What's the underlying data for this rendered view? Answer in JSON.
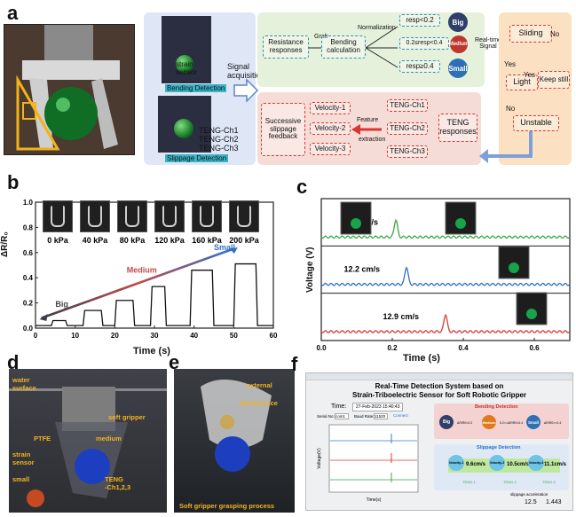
{
  "panels": {
    "a": {
      "letter": "a",
      "strain_sensor": "strain\nsensor",
      "bending_detection": "Bending Detection",
      "slippage_detection": "Slippage Detection",
      "teng_ch1": "TENG-Ch1",
      "teng_ch2": "TENG-Ch2",
      "teng_ch3": "TENG-Ch3",
      "signal_acquisition": "Signal\nacquisition",
      "resistance_responses": "Resistance\nresponses",
      "grab": "Grab",
      "bending_calculation": "Bending\ncalculation",
      "normalization": "Normalization",
      "resp_big": "resp<0.2",
      "resp_medium": "0.2≤resp<0.4",
      "resp_small": "resp≥0.4",
      "big": "Big",
      "medium": "Medium",
      "small": "Small",
      "realtime_signal": "Real-time\nSignal",
      "sliding": "Sliding",
      "no1": "No",
      "yes1": "Yes",
      "yes2": "Yes",
      "light": "Light",
      "keep_still": "Keep still",
      "no2": "No",
      "unstable": "Unstable",
      "successive": "Successive",
      "slippage_feedback": "slippage\nfeedback",
      "velocity1": "Velocity-1",
      "velocity2": "Velocity-2",
      "velocity3": "Velocity-3",
      "feature_extraction_1": "Feature",
      "feature_extraction_2": "extraction",
      "teng_responses": "TENG\nresponses"
    },
    "b": {
      "letter": "b",
      "ylabel": "ΔR/R₀",
      "xlabel": "Time (s)",
      "pressures": [
        "0 kPa",
        "40 kPa",
        "80 kPa",
        "120 kPa",
        "160 kPa",
        "200 kPa"
      ],
      "big": "Big",
      "medium": "Medium",
      "small": "Small"
    },
    "c": {
      "letter": "c",
      "ylabel": "Voltage (V)",
      "xlabel": "Time (s)",
      "speeds": [
        "10 cm/s",
        "12.2 cm/s",
        "12.9 cm/s"
      ]
    },
    "d": {
      "letter": "d",
      "surface": "water\nsurface",
      "soft_gripper": "soft gripper",
      "medium": "medium",
      "ptfe": "PTFE",
      "strain_sensor": "strain\nsensor",
      "small": "small",
      "teng": "TENG\n-Ch1,2,3"
    },
    "e": {
      "letter": "e",
      "external": "external",
      "interference": "interference",
      "caption": "Soft gripper grasping process"
    },
    "f": {
      "letter": "f",
      "title_line1": "Real-Time Detection System based on",
      "title_line2": "Strain-Triboelectric Sensor for Soft Robotic Gripper",
      "time_label": "Time:",
      "time_value": "27-Feb-2023 15:40:43",
      "serial_no": "Serial No:",
      "serial_val": "com1",
      "baud_rate": "Baud Rate:",
      "baud_val": "11520",
      "connect": "Connect",
      "bending_detection": "Bending Detection",
      "slippage_detection": "Slippage Detection",
      "big": "Big",
      "medium": "Medium",
      "small": "Small",
      "cond1": "ΔR/R0<0.2",
      "cond2": "0.2<=ΔR/R0<0.4",
      "cond3": "ΔR/R0>=0.4",
      "v1": "9.6cm/s",
      "v2": "10.5cm/s",
      "v3": "11.1cm/s",
      "vl1": "Velocity-1",
      "vl2": "Velocity-2",
      "vl3": "Velocity-3",
      "teng1": "TENG-1",
      "teng2": "TENG-2",
      "teng3": "TENG-3",
      "slip_accel": "slippage acceleration",
      "accel1": "12.5",
      "accel2": "1.443",
      "x_axis": "Time(s)",
      "y_axis": "Voltage(V)"
    }
  },
  "chart_data": [
    {
      "type": "line",
      "xlabel": "Time (s)",
      "ylabel": "ΔR/R₀",
      "xlim": [
        0,
        60
      ],
      "ylim": [
        0,
        1.0
      ],
      "x_ticks": [
        0,
        10,
        20,
        30,
        40,
        50,
        60
      ],
      "y_ticks": [
        0.0,
        0.2,
        0.4,
        0.6,
        0.8,
        1.0
      ],
      "series": [
        {
          "color": "#111111",
          "steps": [
            {
              "start": 4,
              "end": 8,
              "value": 0.06
            },
            {
              "start": 12,
              "end": 17,
              "value": 0.14
            },
            {
              "start": 20,
              "end": 25,
              "value": 0.22
            },
            {
              "start": 29,
              "end": 33,
              "value": 0.33
            },
            {
              "start": 39,
              "end": 45,
              "value": 0.46
            },
            {
              "start": 50,
              "end": 56,
              "value": 0.51
            }
          ]
        }
      ],
      "annotations": [
        "Big",
        "Medium",
        "Small"
      ]
    },
    {
      "type": "line",
      "xlabel": "Time (s)",
      "ylabel": "Voltage (V)",
      "xlim": [
        0,
        0.7
      ],
      "x_ticks": [
        0.0,
        0.2,
        0.4,
        0.6
      ],
      "series": [
        {
          "color": "#39a845",
          "peak_x": 0.21,
          "label": "10 cm/s"
        },
        {
          "color": "#2f6fc9",
          "peak_x": 0.24,
          "label": "12.2 cm/s"
        },
        {
          "color": "#d83a3a",
          "peak_x": 0.35,
          "label": "12.9 cm/s"
        }
      ]
    }
  ]
}
